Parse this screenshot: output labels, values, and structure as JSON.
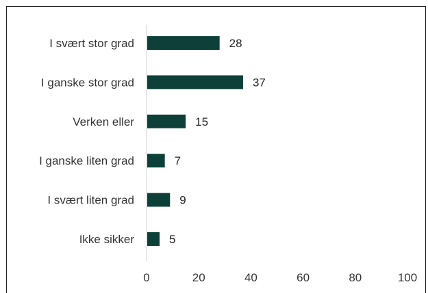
{
  "chart_data": {
    "type": "bar",
    "orientation": "horizontal",
    "categories": [
      "I svært stor grad",
      "I ganske stor grad",
      "Verken eller",
      "I ganske liten grad",
      "I svært liten grad",
      "Ikke sikker"
    ],
    "values": [
      28,
      37,
      15,
      7,
      9,
      5
    ],
    "data_labels": [
      "28",
      "37",
      "15",
      "7",
      "9",
      "5"
    ],
    "xlim": [
      0,
      100
    ],
    "xticks": [
      0,
      20,
      40,
      60,
      80,
      100
    ],
    "xtick_labels": [
      "0",
      "20",
      "40",
      "60",
      "80",
      "100"
    ],
    "grid": false,
    "legend": "none",
    "bar_color": "#0d4038"
  }
}
